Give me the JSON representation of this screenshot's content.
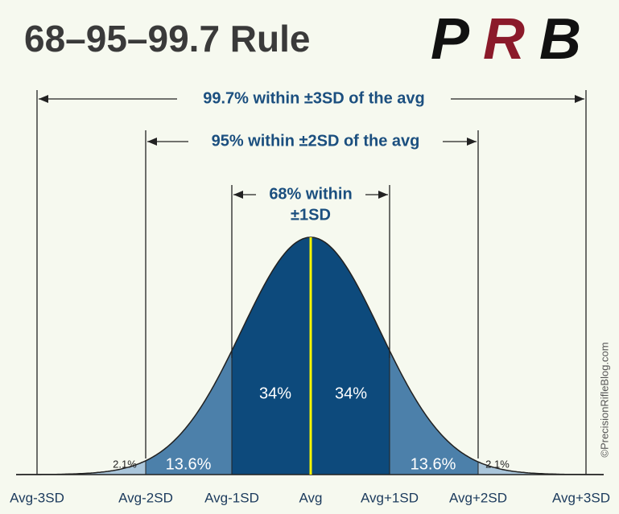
{
  "header": {
    "title": "68–95–99.7 Rule",
    "logo": [
      "P",
      "R",
      "B"
    ]
  },
  "ranges": [
    "99.7% within ±3SD of the avg",
    "95% within ±2SD of the avg",
    "68% within",
    "±1SD"
  ],
  "regions": [
    "2.1%",
    "13.6%",
    "34%",
    "34%",
    "13.6%",
    "2.1%"
  ],
  "axis_labels": [
    "Avg-3SD",
    "Avg-2SD",
    "Avg-1SD",
    "Avg",
    "Avg+1SD",
    "Avg+2SD",
    "Avg+3SD"
  ],
  "credit": "©PrecisionRifleBlog.com"
}
